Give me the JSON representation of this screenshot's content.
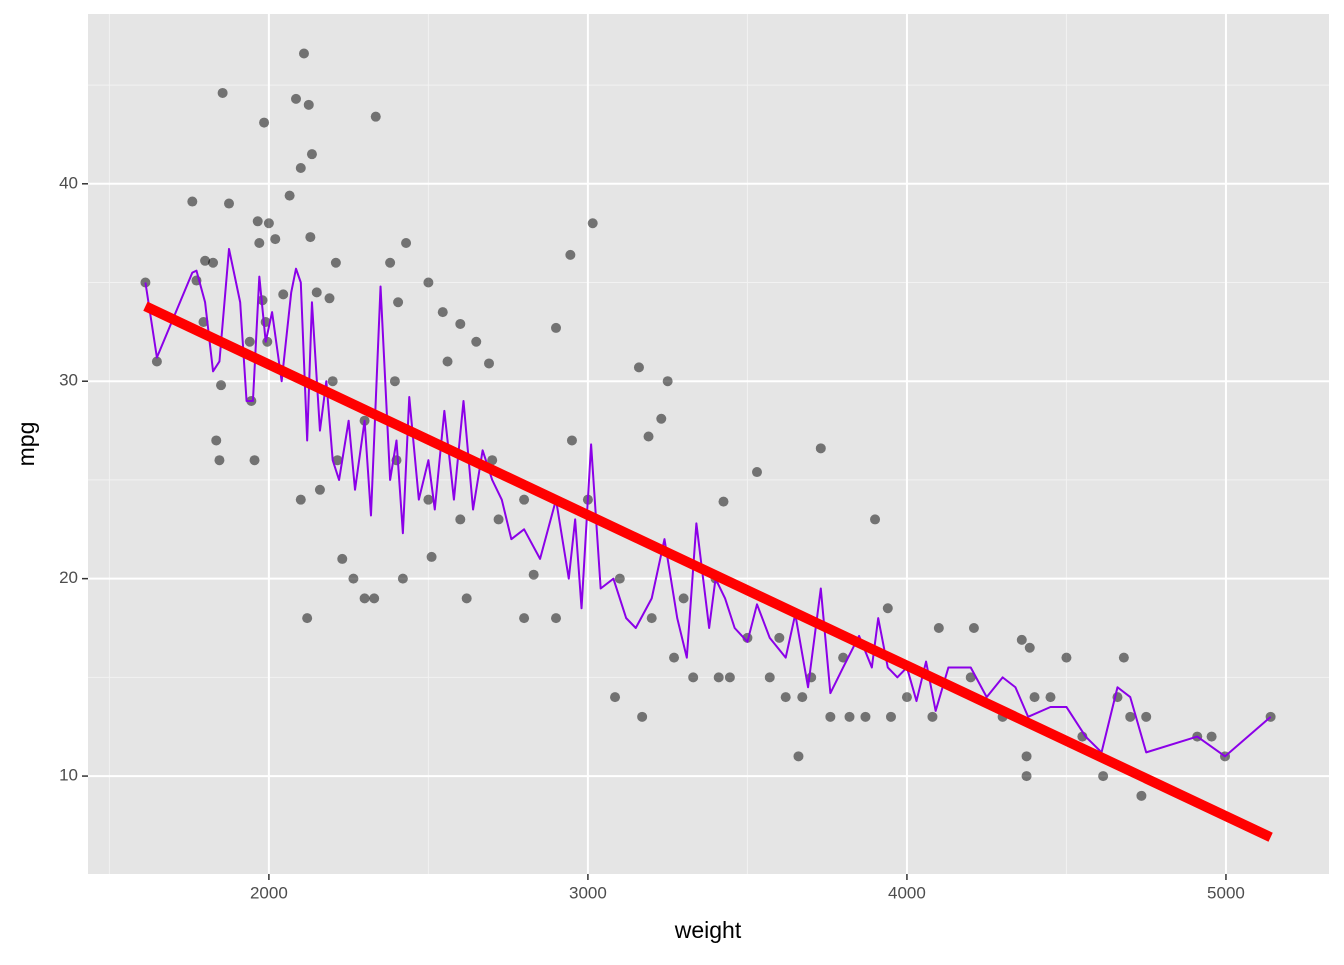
{
  "chart_data": {
    "type": "scatter",
    "x_label": "weight",
    "y_label": "mpg",
    "xlim": [
      1433,
      5323
    ],
    "ylim": [
      5.04,
      48.6
    ],
    "xticks": [
      2000,
      3000,
      4000,
      5000
    ],
    "yticks": [
      10,
      20,
      30,
      40
    ],
    "xminor": [
      1500,
      2500,
      3500,
      4500
    ],
    "yminor": [
      15,
      25,
      35,
      45
    ],
    "grid": true,
    "layers": [
      {
        "type": "scatter",
        "color": "rgba(0,0,0,0.5)",
        "x": [
          1613,
          1649,
          1760,
          1773,
          1795,
          1800,
          1825,
          1835,
          1845,
          1850,
          1855,
          1875,
          1940,
          1945,
          1955,
          1965,
          1970,
          1980,
          1985,
          1990,
          1995,
          2000,
          2020,
          2045,
          2065,
          2085,
          2100,
          2110,
          2125,
          2130,
          2135,
          2120,
          2100,
          2150,
          2160,
          2190,
          2210,
          2215,
          2230,
          2265,
          2300,
          2330,
          2335,
          2380,
          2395,
          2405,
          2420,
          2430,
          2500,
          2510,
          2545,
          2560,
          2600,
          2620,
          2650,
          2690,
          2720,
          2800,
          2830,
          2900,
          2945,
          2950,
          3015,
          3085,
          3160,
          3170,
          3190,
          3230,
          3250,
          3270,
          3330,
          3410,
          3425,
          3445,
          3530,
          3570,
          3620,
          3660,
          3672,
          3730,
          3760,
          3820,
          3900,
          3870,
          3940,
          3950,
          4080,
          4100,
          4210,
          4300,
          4360,
          4375,
          4375,
          4385,
          4450,
          4500,
          4615,
          4660,
          4680,
          4700,
          4735,
          4750,
          4910,
          4955,
          4997,
          5140,
          3000,
          3100,
          3200,
          3400,
          3500,
          3600,
          3800,
          4000,
          4200,
          2800,
          2600,
          2400,
          2300,
          2200,
          2700,
          2500,
          2900,
          3300,
          3700,
          4400,
          4550
        ],
        "y": [
          35,
          31,
          39.1,
          35.1,
          33,
          36.1,
          36,
          27,
          26,
          29.8,
          44.6,
          39,
          32,
          29,
          26,
          38.1,
          37,
          34.1,
          43.1,
          33,
          32,
          38,
          37.2,
          34.4,
          39.4,
          44.3,
          40.8,
          46.6,
          44,
          37.3,
          41.5,
          18,
          24,
          34.5,
          24.5,
          34.2,
          36,
          26,
          21,
          20,
          19,
          19,
          43.4,
          36,
          30,
          34,
          20,
          37,
          35,
          21.1,
          33.5,
          31,
          32.9,
          19,
          32,
          30.9,
          23,
          18,
          20.2,
          32.7,
          36.4,
          27,
          38,
          14,
          30.7,
          13,
          27.2,
          28.1,
          30,
          16,
          15,
          15,
          23.9,
          15,
          25.4,
          15,
          14,
          11,
          14,
          26.6,
          13,
          13,
          23,
          13,
          18.5,
          13,
          13,
          17.5,
          17.5,
          13,
          16.9,
          11,
          10,
          16.5,
          14,
          16,
          10,
          14,
          16,
          13,
          9,
          13,
          12,
          12,
          11,
          13,
          24,
          20,
          18,
          20,
          17,
          17,
          16,
          14,
          15,
          24,
          23,
          26,
          28,
          30,
          26,
          24,
          18,
          19,
          15,
          14,
          12
        ]
      },
      {
        "type": "line",
        "color": "#8b00e8",
        "width": 2,
        "x": [
          1613,
          1649,
          1760,
          1773,
          1800,
          1825,
          1845,
          1875,
          1910,
          1930,
          1950,
          1970,
          1990,
          2010,
          2040,
          2070,
          2085,
          2100,
          2120,
          2135,
          2160,
          2180,
          2200,
          2220,
          2250,
          2270,
          2300,
          2320,
          2350,
          2380,
          2400,
          2420,
          2440,
          2470,
          2500,
          2520,
          2550,
          2580,
          2610,
          2640,
          2670,
          2700,
          2730,
          2760,
          2800,
          2850,
          2900,
          2940,
          2960,
          2980,
          3010,
          3040,
          3080,
          3120,
          3150,
          3200,
          3240,
          3280,
          3310,
          3340,
          3380,
          3400,
          3430,
          3460,
          3500,
          3530,
          3570,
          3620,
          3650,
          3690,
          3730,
          3760,
          3800,
          3850,
          3890,
          3910,
          3940,
          3970,
          4000,
          4030,
          4060,
          4090,
          4130,
          4200,
          4250,
          4300,
          4340,
          4380,
          4450,
          4500,
          4560,
          4610,
          4660,
          4700,
          4750,
          4910,
          4997,
          5140
        ],
        "y": [
          35,
          31.2,
          35.5,
          35.6,
          34,
          30.5,
          31,
          36.7,
          34,
          29,
          29,
          35.3,
          32,
          33.5,
          30,
          34.5,
          35.7,
          35,
          27,
          34,
          27.5,
          30,
          26,
          25,
          28,
          24.5,
          28,
          23.2,
          34.8,
          25,
          27,
          22.3,
          29.2,
          24,
          26,
          23.5,
          28.5,
          24,
          29,
          23.5,
          26.5,
          25,
          24,
          22,
          22.5,
          21,
          24,
          20,
          23,
          18.5,
          26.8,
          19.5,
          20,
          18,
          17.5,
          19,
          22,
          18,
          16,
          22.8,
          17.5,
          20,
          19,
          17.5,
          16.8,
          18.7,
          17,
          16,
          18.2,
          14.5,
          19.5,
          14.2,
          15.5,
          17.1,
          15.5,
          18,
          15.5,
          15,
          15.5,
          13.8,
          15.8,
          13.3,
          15.5,
          15.5,
          14,
          15,
          14.5,
          13,
          13.5,
          13.5,
          12,
          11.2,
          14.5,
          14,
          11.2,
          12,
          11,
          13
        ]
      },
      {
        "type": "line",
        "color": "#ff0000",
        "width": 10,
        "x": [
          1613,
          5140
        ],
        "y": [
          33.8,
          6.9
        ]
      }
    ]
  }
}
